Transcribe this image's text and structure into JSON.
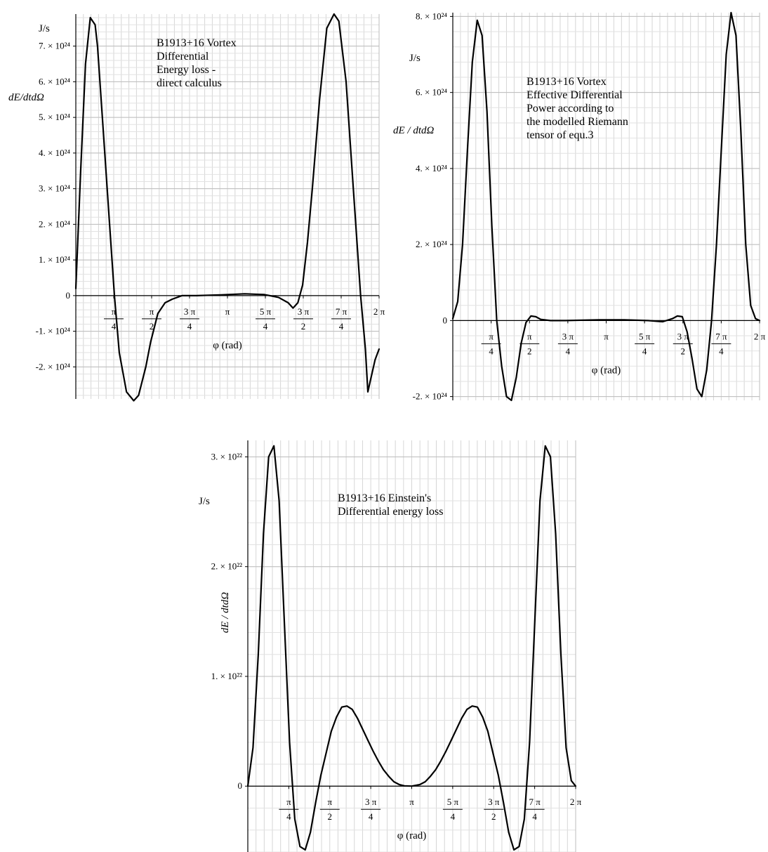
{
  "chart_data": [
    {
      "type": "line",
      "id": "chart1",
      "unit_label": "J/s",
      "ylabel": "dE/dtdΩ",
      "xlabel": "φ (rad)",
      "annotation": [
        "B1913+16 Vortex",
        "Differential",
        "Energy loss  -",
        "direct calculus"
      ],
      "xlim": [
        0,
        6.2832
      ],
      "ylim": [
        -2.9e+24,
        7.9e+24
      ],
      "x_ticks": [
        {
          "value": 0.7854,
          "num": "π",
          "den": "4"
        },
        {
          "value": 1.5708,
          "num": "π",
          "den": "2"
        },
        {
          "value": 2.3562,
          "num": "3 π",
          "den": "4"
        },
        {
          "value": 3.1416,
          "num": "π",
          "den": ""
        },
        {
          "value": 3.927,
          "num": "5 π",
          "den": "4"
        },
        {
          "value": 4.7124,
          "num": "3 π",
          "den": "2"
        },
        {
          "value": 5.4978,
          "num": "7 π",
          "den": "4"
        },
        {
          "value": 6.2832,
          "num": "2 π",
          "den": ""
        }
      ],
      "y_ticks": [
        {
          "value": -2e+24,
          "label": "-2. × 10²⁴"
        },
        {
          "value": -1e+24,
          "label": "-1. × 10²⁴"
        },
        {
          "value": 0,
          "label": "0"
        },
        {
          "value": 1e+24,
          "label": "1. × 10²⁴"
        },
        {
          "value": 2e+24,
          "label": "2. × 10²⁴"
        },
        {
          "value": 3e+24,
          "label": "3. × 10²⁴"
        },
        {
          "value": 4e+24,
          "label": "4. × 10²⁴"
        },
        {
          "value": 5e+24,
          "label": "5. × 10²⁴"
        },
        {
          "value": 6e+24,
          "label": "6. × 10²⁴"
        },
        {
          "value": 7e+24,
          "label": "7. × 10²⁴"
        }
      ],
      "series": [
        {
          "x": [
            0,
            0.1,
            0.2,
            0.3,
            0.4,
            0.45,
            0.55,
            0.7,
            0.8,
            0.9,
            1.05,
            1.2,
            1.3,
            1.45,
            1.55,
            1.7,
            1.85,
            2.0,
            2.2,
            2.5,
            3.0,
            3.5,
            3.9,
            4.2,
            4.4,
            4.5,
            4.6,
            4.7,
            4.8,
            4.9,
            5.05,
            5.2,
            5.35,
            5.45,
            5.6,
            5.75,
            5.9,
            6.0,
            6.05,
            6.1,
            6.2,
            6.2832
          ],
          "y": [
            2e+23,
            3.5e+24,
            6.5e+24,
            7.8e+24,
            7.6e+24,
            7e+24,
            5e+24,
            2e+24,
            0.0,
            -1.6e+24,
            -2.7e+24,
            -2.95e+24,
            -2.8e+24,
            -2e+24,
            -1.3e+24,
            -5e+23,
            -2e+23,
            -1e+23,
            0.0,
            0.0,
            2e+22,
            5e+22,
            3e+22,
            -5e+22,
            -2e+23,
            -3.5e+23,
            -2e+23,
            3e+23,
            1.5e+24,
            3e+24,
            5.5e+24,
            7.5e+24,
            7.9e+24,
            7.7e+24,
            6e+24,
            3e+24,
            0.0,
            -1.5e+24,
            -2.7e+24,
            -2.4e+24,
            -1.8e+24,
            -1.5e+24
          ]
        }
      ]
    },
    {
      "type": "line",
      "id": "chart2",
      "unit_label": "J/s",
      "ylabel": "dE / dtdΩ",
      "xlabel": "φ (rad)",
      "annotation": [
        "B1913+16 Vortex",
        "Effective Differential",
        "Power according to",
        "the modelled Riemann",
        "tensor of equ.3"
      ],
      "xlim": [
        0,
        6.2832
      ],
      "ylim": [
        -2.1e+24,
        8.1e+24
      ],
      "x_ticks": [
        {
          "value": 0.7854,
          "num": "π",
          "den": "4"
        },
        {
          "value": 1.5708,
          "num": "π",
          "den": "2"
        },
        {
          "value": 2.3562,
          "num": "3 π",
          "den": "4"
        },
        {
          "value": 3.1416,
          "num": "π",
          "den": ""
        },
        {
          "value": 3.927,
          "num": "5 π",
          "den": "4"
        },
        {
          "value": 4.7124,
          "num": "3 π",
          "den": "2"
        },
        {
          "value": 5.4978,
          "num": "7 π",
          "den": "4"
        },
        {
          "value": 6.2832,
          "num": "2 π",
          "den": ""
        }
      ],
      "y_ticks": [
        {
          "value": -2e+24,
          "label": "-2. × 10²⁴"
        },
        {
          "value": 0,
          "label": "0"
        },
        {
          "value": 2e+24,
          "label": "2. × 10²⁴"
        },
        {
          "value": 4e+24,
          "label": "4. × 10²⁴"
        },
        {
          "value": 6e+24,
          "label": "6. × 10²⁴"
        },
        {
          "value": 8e+24,
          "label": "8. × 10²⁴"
        }
      ],
      "series": [
        {
          "x": [
            0,
            0.1,
            0.2,
            0.3,
            0.4,
            0.5,
            0.6,
            0.7,
            0.8,
            0.9,
            1.0,
            1.1,
            1.2,
            1.3,
            1.4,
            1.5,
            1.6,
            1.7,
            1.8,
            2.0,
            2.3,
            3.0,
            3.5,
            4.0,
            4.3,
            4.5,
            4.6,
            4.7,
            4.8,
            4.9,
            5.0,
            5.1,
            5.2,
            5.3,
            5.4,
            5.5,
            5.6,
            5.7,
            5.8,
            5.9,
            6.0,
            6.1,
            6.2,
            6.2832
          ],
          "y": [
            5e+22,
            5e+23,
            2e+24,
            4.5e+24,
            6.8e+24,
            7.9e+24,
            7.5e+24,
            5.5e+24,
            2.5e+24,
            0.0,
            -1.2e+24,
            -2e+24,
            -2.1e+24,
            -1.5e+24,
            -6e+23,
            -5e+22,
            1.2e+23,
            1e+23,
            3e+22,
            0.0,
            0.0,
            2e+22,
            2e+22,
            0.0,
            -3e+22,
            5e+22,
            1.2e+23,
            1e+23,
            -3e+23,
            -1e+24,
            -1.8e+24,
            -2e+24,
            -1.3e+24,
            0.0,
            2e+24,
            4.5e+24,
            7e+24,
            8.1e+24,
            7.5e+24,
            5e+24,
            2e+24,
            4e+23,
            5e+22,
            0.0
          ]
        }
      ]
    },
    {
      "type": "line",
      "id": "chart3",
      "unit_label": "J/s",
      "ylabel": "dE / dtdΩ",
      "xlabel": "φ (rad)",
      "annotation": [
        "B1913+16 Einstein's",
        "Differential energy loss"
      ],
      "xlim": [
        0,
        6.2832
      ],
      "ylim": [
        -6e+21,
        3.15e+22
      ],
      "x_ticks": [
        {
          "value": 0.7854,
          "num": "π",
          "den": "4"
        },
        {
          "value": 1.5708,
          "num": "π",
          "den": "2"
        },
        {
          "value": 2.3562,
          "num": "3 π",
          "den": "4"
        },
        {
          "value": 3.1416,
          "num": "π",
          "den": ""
        },
        {
          "value": 3.927,
          "num": "5 π",
          "den": "4"
        },
        {
          "value": 4.7124,
          "num": "3 π",
          "den": "2"
        },
        {
          "value": 5.4978,
          "num": "7 π",
          "den": "4"
        },
        {
          "value": 6.2832,
          "num": "2 π",
          "den": ""
        }
      ],
      "y_ticks": [
        {
          "value": 0,
          "label": "0"
        },
        {
          "value": 1e+22,
          "label": "1. × 10²²"
        },
        {
          "value": 2e+22,
          "label": "2. × 10²²"
        },
        {
          "value": 3e+22,
          "label": "3. × 10²²"
        }
      ],
      "series": [
        {
          "x": [
            0,
            0.1,
            0.2,
            0.3,
            0.4,
            0.5,
            0.6,
            0.7,
            0.8,
            0.9,
            1.0,
            1.1,
            1.2,
            1.3,
            1.4,
            1.5,
            1.6,
            1.7,
            1.8,
            1.9,
            2.0,
            2.1,
            2.2,
            2.3,
            2.4,
            2.5,
            2.6,
            2.7,
            2.8,
            2.9,
            3.0,
            3.1416,
            3.3,
            3.4,
            3.5,
            3.6,
            3.7,
            3.8,
            3.9,
            4.0,
            4.1,
            4.2,
            4.3,
            4.4,
            4.5,
            4.6,
            4.7,
            4.8,
            4.9,
            5.0,
            5.1,
            5.2,
            5.3,
            5.4,
            5.5,
            5.6,
            5.7,
            5.8,
            5.9,
            6.0,
            6.1,
            6.2,
            6.2832
          ],
          "y": [
            0.0,
            3.5e+21,
            1.2e+22,
            2.3e+22,
            3e+22,
            3.1e+22,
            2.6e+22,
            1.5e+22,
            4e+21,
            -3e+21,
            -5.5e+21,
            -5.8e+21,
            -4.2e+21,
            -1.5e+21,
            1e+21,
            3e+21,
            5e+21,
            6.3e+21,
            7.2e+21,
            7.3e+21,
            7e+21,
            6.2e+21,
            5.2e+21,
            4.2e+21,
            3.2e+21,
            2.3e+21,
            1.5e+21,
            9e+20,
            4e+20,
            1.5e+20,
            3e+19,
            0.0,
            1.5e+20,
            4e+20,
            9e+20,
            1.5e+21,
            2.3e+21,
            3.2e+21,
            4.2e+21,
            5.2e+21,
            6.2e+21,
            7e+21,
            7.3e+21,
            7.2e+21,
            6.3e+21,
            5e+21,
            3e+21,
            1e+21,
            -1.5e+21,
            -4.2e+21,
            -5.8e+21,
            -5.5e+21,
            -3e+21,
            4e+21,
            1.5e+22,
            2.6e+22,
            3.1e+22,
            3e+22,
            2.3e+22,
            1.2e+22,
            3.5e+21,
            5e+20,
            0.0
          ]
        }
      ]
    }
  ]
}
